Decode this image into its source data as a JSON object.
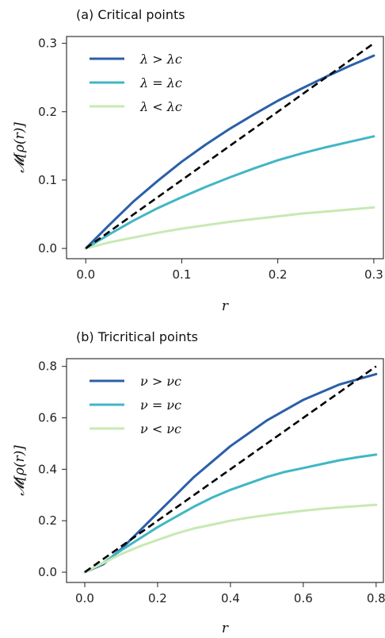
{
  "chart_data": [
    {
      "type": "line",
      "title": "(a) Critical points",
      "xlabel": "r",
      "ylabel": "𝓜[ρ(r)]",
      "xlim": [
        -0.02,
        0.31
      ],
      "ylim": [
        -0.015,
        0.31
      ],
      "xticks": [
        0.0,
        0.1,
        0.2,
        0.3
      ],
      "yticks": [
        0.0,
        0.1,
        0.2,
        0.3
      ],
      "tick_labels_x": [
        "0.0",
        "0.1",
        "0.2",
        "0.3"
      ],
      "tick_labels_y": [
        "0.0",
        "0.1",
        "0.2",
        "0.3"
      ],
      "legend_position": "top-left",
      "grid": false,
      "series": [
        {
          "name": "λ > λc",
          "color": "#2b5fa8",
          "x": [
            0,
            0.025,
            0.05,
            0.075,
            0.1,
            0.125,
            0.15,
            0.175,
            0.2,
            0.225,
            0.25,
            0.275,
            0.3
          ],
          "values": [
            0,
            0.035,
            0.069,
            0.099,
            0.127,
            0.152,
            0.175,
            0.196,
            0.216,
            0.234,
            0.251,
            0.267,
            0.282
          ]
        },
        {
          "name": "λ = λc",
          "color": "#41b6c4",
          "x": [
            0,
            0.025,
            0.05,
            0.075,
            0.1,
            0.125,
            0.15,
            0.175,
            0.2,
            0.225,
            0.25,
            0.275,
            0.3
          ],
          "values": [
            0,
            0.021,
            0.041,
            0.059,
            0.075,
            0.09,
            0.104,
            0.117,
            0.129,
            0.139,
            0.148,
            0.156,
            0.164
          ]
        },
        {
          "name": "λ < λc",
          "color": "#c7e9b4",
          "x": [
            0,
            0.025,
            0.05,
            0.075,
            0.1,
            0.125,
            0.15,
            0.175,
            0.2,
            0.225,
            0.25,
            0.275,
            0.3
          ],
          "values": [
            0,
            0.009,
            0.016,
            0.023,
            0.029,
            0.034,
            0.039,
            0.043,
            0.047,
            0.051,
            0.054,
            0.057,
            0.06
          ]
        },
        {
          "name": "",
          "color": "#000000",
          "dashed": true,
          "x": [
            0,
            0.3
          ],
          "values": [
            0,
            0.3
          ]
        }
      ]
    },
    {
      "type": "line",
      "title": "(b) Tricritical points",
      "xlabel": "r",
      "ylabel": "𝓜[ρ(r)]",
      "xlim": [
        -0.05,
        0.82
      ],
      "ylim": [
        -0.04,
        0.83
      ],
      "xticks": [
        0.0,
        0.2,
        0.4,
        0.6,
        0.8
      ],
      "yticks": [
        0.0,
        0.2,
        0.4,
        0.6,
        0.8
      ],
      "tick_labels_x": [
        "0.0",
        "0.2",
        "0.4",
        "0.6",
        "0.8"
      ],
      "tick_labels_y": [
        "0.0",
        "0.2",
        "0.4",
        "0.6",
        "0.8"
      ],
      "legend_position": "top-left",
      "grid": false,
      "series": [
        {
          "name": "ν > νc",
          "color": "#2b5fa8",
          "x": [
            0,
            0.05,
            0.1,
            0.15,
            0.2,
            0.25,
            0.3,
            0.35,
            0.4,
            0.45,
            0.5,
            0.55,
            0.6,
            0.65,
            0.7,
            0.75,
            0.8
          ],
          "values": [
            0,
            0.03,
            0.09,
            0.16,
            0.23,
            0.3,
            0.37,
            0.43,
            0.49,
            0.54,
            0.59,
            0.63,
            0.67,
            0.7,
            0.73,
            0.75,
            0.77
          ]
        },
        {
          "name": "ν = νc",
          "color": "#41b6c4",
          "x": [
            0,
            0.05,
            0.1,
            0.15,
            0.2,
            0.25,
            0.3,
            0.35,
            0.4,
            0.45,
            0.5,
            0.55,
            0.6,
            0.65,
            0.7,
            0.75,
            0.8
          ],
          "values": [
            0,
            0.035,
            0.085,
            0.13,
            0.175,
            0.215,
            0.255,
            0.29,
            0.32,
            0.345,
            0.37,
            0.39,
            0.405,
            0.42,
            0.435,
            0.447,
            0.457
          ]
        },
        {
          "name": "ν < νc",
          "color": "#c7e9b4",
          "x": [
            0,
            0.05,
            0.1,
            0.15,
            0.2,
            0.25,
            0.3,
            0.35,
            0.4,
            0.45,
            0.5,
            0.55,
            0.6,
            0.65,
            0.7,
            0.75,
            0.8
          ],
          "values": [
            0,
            0.035,
            0.07,
            0.1,
            0.125,
            0.15,
            0.17,
            0.185,
            0.2,
            0.212,
            0.222,
            0.231,
            0.239,
            0.246,
            0.252,
            0.257,
            0.262
          ]
        },
        {
          "name": "",
          "color": "#000000",
          "dashed": true,
          "x": [
            0,
            0.8
          ],
          "values": [
            0,
            0.8
          ]
        }
      ]
    }
  ]
}
